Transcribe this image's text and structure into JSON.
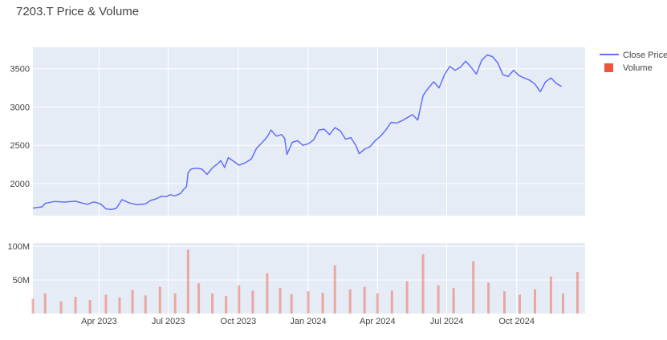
{
  "chart_data": {
    "title": "7203.T Price & Volume",
    "type": "line+bar",
    "x_axis": {
      "type": "date",
      "range": [
        "2023-01-04",
        "2024-12-30"
      ],
      "tick_labels": [
        {
          "date": "2023-04-01",
          "label": "Apr 2023"
        },
        {
          "date": "2023-07-01",
          "label": "Jul 2023"
        },
        {
          "date": "2023-10-01",
          "label": "Oct 2023"
        },
        {
          "date": "2024-01-01",
          "label": "Jan 2024"
        },
        {
          "date": "2024-04-01",
          "label": "Apr 2024"
        },
        {
          "date": "2024-07-01",
          "label": "Jul 2024"
        },
        {
          "date": "2024-10-01",
          "label": "Oct 2024"
        }
      ]
    },
    "price_axis": {
      "range": [
        1580,
        3780
      ],
      "ticks": [
        {
          "value": 2000,
          "label": "2000"
        },
        {
          "value": 2500,
          "label": "2500"
        },
        {
          "value": 3000,
          "label": "3000"
        },
        {
          "value": 3500,
          "label": "3500"
        }
      ]
    },
    "volume_axis": {
      "range": [
        0,
        105000000
      ],
      "ticks": [
        {
          "value": 50000000,
          "label": "50M"
        },
        {
          "value": 100000000,
          "label": "100M"
        }
      ]
    },
    "legend": {
      "placement": "top-right",
      "entries": [
        {
          "name": "Close Price",
          "symbol": "line",
          "color": "#636efa"
        },
        {
          "name": "Volume",
          "symbol": "square",
          "color": "#ef553b"
        }
      ]
    },
    "colors": {
      "price_line": "#636efa",
      "volume_bar": "#ef553b",
      "plot_bg": "#e5ecf6",
      "grid": "#ffffff",
      "text": "#444444"
    },
    "series": [
      {
        "name": "Close Price",
        "kind": "line",
        "points": [
          [
            "2023-01-04",
            1680
          ],
          [
            "2023-01-16",
            1695
          ],
          [
            "2023-01-20",
            1740
          ],
          [
            "2023-02-01",
            1765
          ],
          [
            "2023-02-15",
            1758
          ],
          [
            "2023-03-01",
            1770
          ],
          [
            "2023-03-10",
            1745
          ],
          [
            "2023-03-17",
            1730
          ],
          [
            "2023-03-25",
            1760
          ],
          [
            "2023-04-03",
            1735
          ],
          [
            "2023-04-10",
            1670
          ],
          [
            "2023-04-17",
            1660
          ],
          [
            "2023-04-24",
            1680
          ],
          [
            "2023-05-01",
            1790
          ],
          [
            "2023-05-10",
            1750
          ],
          [
            "2023-05-20",
            1725
          ],
          [
            "2023-06-01",
            1735
          ],
          [
            "2023-06-08",
            1780
          ],
          [
            "2023-06-15",
            1800
          ],
          [
            "2023-06-22",
            1835
          ],
          [
            "2023-06-29",
            1830
          ],
          [
            "2023-07-03",
            1855
          ],
          [
            "2023-07-10",
            1840
          ],
          [
            "2023-07-17",
            1870
          ],
          [
            "2023-07-21",
            1920
          ],
          [
            "2023-07-25",
            1960
          ],
          [
            "2023-07-27",
            2140
          ],
          [
            "2023-07-31",
            2190
          ],
          [
            "2023-08-07",
            2200
          ],
          [
            "2023-08-14",
            2190
          ],
          [
            "2023-08-21",
            2120
          ],
          [
            "2023-08-28",
            2205
          ],
          [
            "2023-09-04",
            2260
          ],
          [
            "2023-09-08",
            2300
          ],
          [
            "2023-09-13",
            2210
          ],
          [
            "2023-09-18",
            2340
          ],
          [
            "2023-09-25",
            2290
          ],
          [
            "2023-10-02",
            2240
          ],
          [
            "2023-10-10",
            2270
          ],
          [
            "2023-10-18",
            2320
          ],
          [
            "2023-10-25",
            2460
          ],
          [
            "2023-11-01",
            2530
          ],
          [
            "2023-11-08",
            2610
          ],
          [
            "2023-11-13",
            2700
          ],
          [
            "2023-11-20",
            2620
          ],
          [
            "2023-11-27",
            2640
          ],
          [
            "2023-12-01",
            2590
          ],
          [
            "2023-12-04",
            2380
          ],
          [
            "2023-12-11",
            2540
          ],
          [
            "2023-12-18",
            2560
          ],
          [
            "2023-12-25",
            2500
          ],
          [
            "2024-01-01",
            2520
          ],
          [
            "2024-01-08",
            2570
          ],
          [
            "2024-01-15",
            2700
          ],
          [
            "2024-01-22",
            2710
          ],
          [
            "2024-01-29",
            2640
          ],
          [
            "2024-02-05",
            2730
          ],
          [
            "2024-02-12",
            2690
          ],
          [
            "2024-02-19",
            2580
          ],
          [
            "2024-02-26",
            2600
          ],
          [
            "2024-03-04",
            2490
          ],
          [
            "2024-03-08",
            2390
          ],
          [
            "2024-03-15",
            2450
          ],
          [
            "2024-03-22",
            2480
          ],
          [
            "2024-03-29",
            2560
          ],
          [
            "2024-04-05",
            2620
          ],
          [
            "2024-04-12",
            2700
          ],
          [
            "2024-04-19",
            2800
          ],
          [
            "2024-04-26",
            2790
          ],
          [
            "2024-05-03",
            2820
          ],
          [
            "2024-05-10",
            2860
          ],
          [
            "2024-05-17",
            2900
          ],
          [
            "2024-05-24",
            2830
          ],
          [
            "2024-05-31",
            3150
          ],
          [
            "2024-06-07",
            3250
          ],
          [
            "2024-06-14",
            3330
          ],
          [
            "2024-06-21",
            3250
          ],
          [
            "2024-06-28",
            3420
          ],
          [
            "2024-07-05",
            3530
          ],
          [
            "2024-07-12",
            3480
          ],
          [
            "2024-07-19",
            3520
          ],
          [
            "2024-07-26",
            3600
          ],
          [
            "2024-08-02",
            3520
          ],
          [
            "2024-08-09",
            3430
          ],
          [
            "2024-08-16",
            3610
          ],
          [
            "2024-08-23",
            3680
          ],
          [
            "2024-08-30",
            3660
          ],
          [
            "2024-09-06",
            3580
          ],
          [
            "2024-09-13",
            3420
          ],
          [
            "2024-09-20",
            3400
          ],
          [
            "2024-09-27",
            3480
          ],
          [
            "2024-10-04",
            3410
          ],
          [
            "2024-10-11",
            3380
          ],
          [
            "2024-10-18",
            3350
          ],
          [
            "2024-10-25",
            3300
          ],
          [
            "2024-11-01",
            3200
          ],
          [
            "2024-11-08",
            3330
          ],
          [
            "2024-11-15",
            3380
          ],
          [
            "2024-11-22",
            3310
          ],
          [
            "2024-11-29",
            3270
          ]
        ]
      },
      {
        "name": "Volume",
        "kind": "bar",
        "points": [
          [
            "2023-01-04",
            22000000
          ],
          [
            "2023-01-20",
            30000000
          ],
          [
            "2023-02-10",
            18000000
          ],
          [
            "2023-03-01",
            25000000
          ],
          [
            "2023-03-20",
            20000000
          ],
          [
            "2023-04-10",
            28000000
          ],
          [
            "2023-04-28",
            24000000
          ],
          [
            "2023-05-15",
            35000000
          ],
          [
            "2023-06-01",
            27000000
          ],
          [
            "2023-06-20",
            40000000
          ],
          [
            "2023-07-10",
            30000000
          ],
          [
            "2023-07-27",
            95000000
          ],
          [
            "2023-08-10",
            45000000
          ],
          [
            "2023-08-28",
            30000000
          ],
          [
            "2023-09-15",
            26000000
          ],
          [
            "2023-10-02",
            42000000
          ],
          [
            "2023-10-20",
            34000000
          ],
          [
            "2023-11-08",
            60000000
          ],
          [
            "2023-11-25",
            38000000
          ],
          [
            "2023-12-10",
            29000000
          ],
          [
            "2024-01-01",
            33000000
          ],
          [
            "2024-01-20",
            31000000
          ],
          [
            "2024-02-05",
            72000000
          ],
          [
            "2024-02-25",
            36000000
          ],
          [
            "2024-03-15",
            40000000
          ],
          [
            "2024-04-01",
            30000000
          ],
          [
            "2024-04-20",
            34000000
          ],
          [
            "2024-05-10",
            48000000
          ],
          [
            "2024-05-31",
            88000000
          ],
          [
            "2024-06-20",
            42000000
          ],
          [
            "2024-07-10",
            38000000
          ],
          [
            "2024-08-05",
            78000000
          ],
          [
            "2024-08-25",
            46000000
          ],
          [
            "2024-09-15",
            33000000
          ],
          [
            "2024-10-05",
            28000000
          ],
          [
            "2024-10-25",
            36000000
          ],
          [
            "2024-11-15",
            55000000
          ],
          [
            "2024-12-01",
            30000000
          ],
          [
            "2024-12-20",
            62000000
          ]
        ]
      }
    ]
  }
}
